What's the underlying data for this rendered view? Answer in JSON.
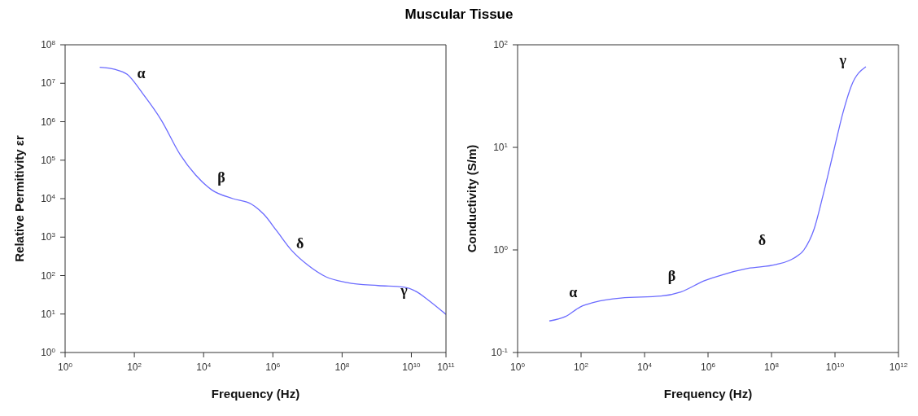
{
  "chart_data": [
    {
      "type": "line",
      "title": "Muscular Tissue",
      "xlabel": "Frequency (Hz)",
      "ylabel": "Relative Permitivity εr",
      "log": "xy",
      "marker": "none",
      "line_style": "solid",
      "x": [
        10,
        27,
        62,
        174,
        600,
        2100,
        5900,
        17000,
        70000,
        240000,
        550000,
        1260000,
        3500000,
        10000000,
        34000000,
        140000000,
        1100000000,
        6000000000,
        13500000000,
        31000000000,
        100000000000
      ],
      "series": [
        {
          "color": "#6b6bff",
          "values": [
            26000000,
            23000000,
            17000000,
            5400000,
            1100000,
            140000,
            41000,
            17000,
            10000,
            7200,
            3900,
            1500,
            450,
            190,
            93,
            66,
            55,
            50,
            39,
            23,
            9.8
          ]
        }
      ],
      "xlim": [
        1,
        100000000000
      ],
      "ylim": [
        1,
        100000000
      ],
      "xticks": [
        {
          "value": 1,
          "label": "10$^{0}$"
        },
        {
          "value": 100,
          "label": "10$^{2}$"
        },
        {
          "value": 10000,
          "label": "10$^{4}$"
        },
        {
          "value": 1000000,
          "label": "10$^{6}$"
        },
        {
          "value": 100000000,
          "label": "10$^{8}$"
        },
        {
          "value": 10000000000,
          "label": "10$^{10}$"
        },
        {
          "value": 100000000000,
          "label": "10$^{11}$"
        }
      ],
      "yticks": [
        {
          "value": 1,
          "label": "10$^{0}$"
        },
        {
          "value": 10,
          "label": "10$^{1}$"
        },
        {
          "value": 100,
          "label": "10$^{2}$"
        },
        {
          "value": 1000,
          "label": "10$^{3}$"
        },
        {
          "value": 10000,
          "label": "10$^{4}$"
        },
        {
          "value": 100000,
          "label": "10$^{5}$"
        },
        {
          "value": 1000000,
          "label": "10$^{6}$"
        },
        {
          "value": 10000000,
          "label": "10$^{7}$"
        },
        {
          "value": 100000000,
          "label": "10$^{8}$"
        }
      ],
      "annotations": [
        "α",
        "β",
        "δ",
        "γ"
      ]
    },
    {
      "type": "line",
      "xlabel": "Frequency (Hz)",
      "ylabel": "Conductivity (S/m)",
      "log": "xy",
      "marker": "none",
      "line_style": "solid",
      "x": [
        10,
        33,
        94,
        270,
        1800,
        33000,
        140000,
        760000,
        2700000,
        18000000,
        140000000,
        500000000,
        1050000000,
        2200000000,
        4100000000,
        9400000000,
        18000000000,
        33000000000,
        94000000000
      ],
      "series": [
        {
          "color": "#6b6bff",
          "values": [
            0.203,
            0.225,
            0.278,
            0.31,
            0.34,
            0.355,
            0.39,
            0.5,
            0.57,
            0.66,
            0.72,
            0.83,
            1.0,
            1.6,
            3.3,
            9.6,
            22,
            40,
            61
          ]
        }
      ],
      "xlim": [
        1,
        1000000000000
      ],
      "ylim": [
        0.1,
        100
      ],
      "xticks": [
        {
          "value": 1,
          "label": "10$^{0}$"
        },
        {
          "value": 100,
          "label": "10$^{2}$"
        },
        {
          "value": 10000,
          "label": "10$^{4}$"
        },
        {
          "value": 1000000,
          "label": "10$^{6}$"
        },
        {
          "value": 100000000,
          "label": "10$^{8}$"
        },
        {
          "value": 10000000000,
          "label": "10$^{10}$"
        },
        {
          "value": 1000000000000,
          "label": "10$^{12}$"
        }
      ],
      "yticks": [
        {
          "value": 0.1,
          "label": "10$^{-1}$"
        },
        {
          "value": 1,
          "label": "10$^{0}$"
        },
        {
          "value": 10,
          "label": "10$^{1}$"
        },
        {
          "value": 100,
          "label": "10$^{2}$"
        }
      ],
      "annotations": [
        "α",
        "β",
        "δ",
        "γ"
      ]
    }
  ]
}
